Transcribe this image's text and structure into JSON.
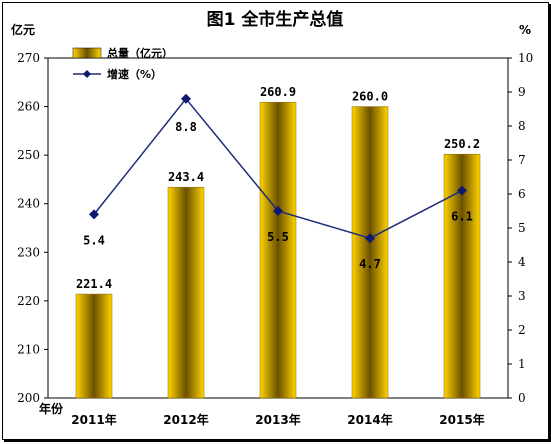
{
  "chart_data": {
    "type": "bar",
    "title": "图1      全市生产总值",
    "left_unit": "亿元",
    "right_unit": "%",
    "x_label": "年份",
    "categories": [
      "2011年",
      "2012年",
      "2013年",
      "2014年",
      "2015年"
    ],
    "series": [
      {
        "name": "总量（亿元）",
        "type": "bar",
        "axis": "left",
        "values": [
          221.4,
          243.4,
          260.9,
          260.0,
          250.2
        ]
      },
      {
        "name": "增速（%）",
        "type": "line",
        "axis": "right",
        "values": [
          5.4,
          8.8,
          5.5,
          4.7,
          6.1
        ]
      }
    ],
    "bar_labels": [
      "221.4",
      "243.4",
      "260.9",
      "260.0",
      "250.2"
    ],
    "line_labels": [
      "5.4",
      "8.8",
      "5.5",
      "4.7",
      "6.1"
    ],
    "ylim_left": [
      200,
      270
    ],
    "yticks_left": [
      "200",
      "210",
      "220",
      "230",
      "240",
      "250",
      "260",
      "270"
    ],
    "ylim_right": [
      0,
      10
    ],
    "yticks_right": [
      "0",
      "1",
      "2",
      "3",
      "4",
      "5",
      "6",
      "7",
      "8",
      "9",
      "10"
    ],
    "grid": false,
    "legend_position": "top-left",
    "colors": {
      "bar_light": "#ffd400",
      "bar_dark": "#6b5000",
      "line": "#1f2d7a",
      "marker": "#0d1a6e"
    }
  }
}
